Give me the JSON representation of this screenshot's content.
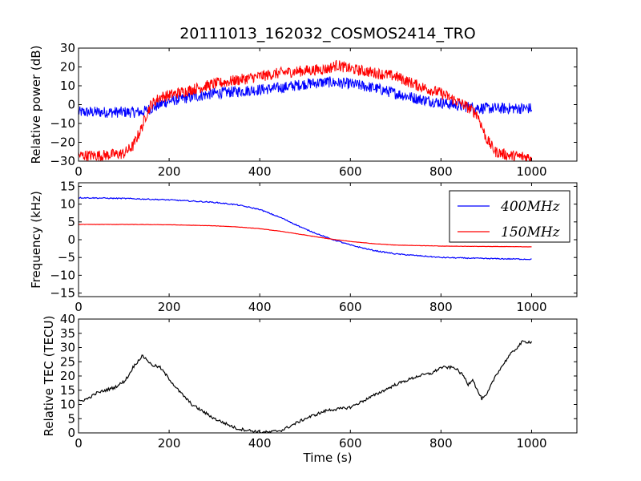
{
  "chart_data": [
    {
      "type": "line",
      "title": "20111013_162032_COSMOS2414_TRO",
      "xlabel": "",
      "ylabel": "Relative power (dB)",
      "xlim": [
        0,
        1100
      ],
      "ylim": [
        -30,
        30
      ],
      "xticks": [
        0,
        200,
        400,
        600,
        800,
        1000
      ],
      "yticks": [
        -30,
        -20,
        -10,
        0,
        10,
        20,
        30
      ],
      "series": [
        {
          "color": "#0000ff",
          "noise": 3,
          "x": [
            0,
            50,
            100,
            140,
            160,
            180,
            200,
            250,
            300,
            350,
            400,
            450,
            500,
            550,
            600,
            650,
            700,
            750,
            800,
            850,
            900,
            950,
            1000
          ],
          "y": [
            -4,
            -4,
            -4,
            -4,
            -2,
            0,
            2,
            4,
            6,
            7,
            8,
            9,
            11,
            12,
            11,
            9,
            6,
            3,
            1,
            -1,
            -2,
            -2,
            -2
          ]
        },
        {
          "color": "#ff0000",
          "noise": 3,
          "x": [
            0,
            50,
            100,
            120,
            140,
            150,
            160,
            170,
            180,
            200,
            250,
            300,
            350,
            400,
            450,
            500,
            550,
            570,
            600,
            650,
            700,
            750,
            800,
            850,
            880,
            900,
            920,
            950,
            1000
          ],
          "y": [
            -27,
            -27,
            -26,
            -22,
            -12,
            -5,
            0,
            2,
            4,
            5,
            8,
            11,
            13,
            15,
            17,
            18,
            19,
            21,
            19,
            17,
            15,
            10,
            6,
            0,
            -5,
            -18,
            -25,
            -27,
            -28
          ]
        }
      ]
    },
    {
      "type": "line",
      "xlabel": "",
      "ylabel": "Frequency (kHz)",
      "xlim": [
        0,
        1100
      ],
      "ylim": [
        -16,
        16
      ],
      "xticks": [
        0,
        200,
        400,
        600,
        800,
        1000
      ],
      "yticks": [
        -15,
        -10,
        -5,
        0,
        5,
        10,
        15
      ],
      "legend": "top-right",
      "series": [
        {
          "name": "400MHz",
          "color": "#0000ff",
          "noise": 0.15,
          "x": [
            0,
            100,
            200,
            300,
            350,
            400,
            450,
            500,
            550,
            600,
            650,
            700,
            800,
            900,
            1000
          ],
          "y": [
            11.8,
            11.6,
            11.2,
            10.5,
            9.8,
            8.5,
            6.0,
            3.0,
            0.5,
            -1.5,
            -3.0,
            -4.0,
            -5.0,
            -5.3,
            -5.5
          ]
        },
        {
          "name": "150MHz",
          "color": "#ff0000",
          "noise": 0.04,
          "x": [
            0,
            100,
            200,
            300,
            350,
            400,
            450,
            500,
            550,
            600,
            650,
            700,
            800,
            900,
            1000
          ],
          "y": [
            4.3,
            4.3,
            4.2,
            3.9,
            3.6,
            3.1,
            2.3,
            1.3,
            0.3,
            -0.5,
            -1.1,
            -1.5,
            -1.8,
            -1.9,
            -2.0
          ]
        }
      ]
    },
    {
      "type": "line",
      "xlabel": "Time (s)",
      "ylabel": "Relative TEC (TECU)",
      "xlim": [
        0,
        1100
      ],
      "ylim": [
        0,
        40
      ],
      "xticks": [
        0,
        200,
        400,
        600,
        800,
        1000
      ],
      "yticks": [
        0,
        5,
        10,
        15,
        20,
        25,
        30,
        35,
        40
      ],
      "series": [
        {
          "color": "#000000",
          "noise": 0.5,
          "x": [
            0,
            20,
            40,
            60,
            80,
            100,
            110,
            120,
            130,
            140,
            150,
            160,
            180,
            200,
            220,
            250,
            300,
            350,
            400,
            420,
            450,
            500,
            550,
            580,
            600,
            650,
            700,
            750,
            780,
            800,
            830,
            850,
            860,
            870,
            880,
            890,
            900,
            920,
            950,
            980,
            1000
          ],
          "y": [
            11,
            12,
            14,
            15,
            16,
            18,
            20,
            23,
            25,
            27,
            26,
            24,
            23,
            19,
            15,
            10,
            5,
            1.5,
            0.3,
            0.2,
            1,
            5,
            8,
            8.5,
            9,
            13,
            17,
            20,
            21,
            23,
            23,
            20,
            17,
            19,
            15,
            12,
            13,
            20,
            27,
            32,
            32
          ]
        }
      ]
    }
  ]
}
